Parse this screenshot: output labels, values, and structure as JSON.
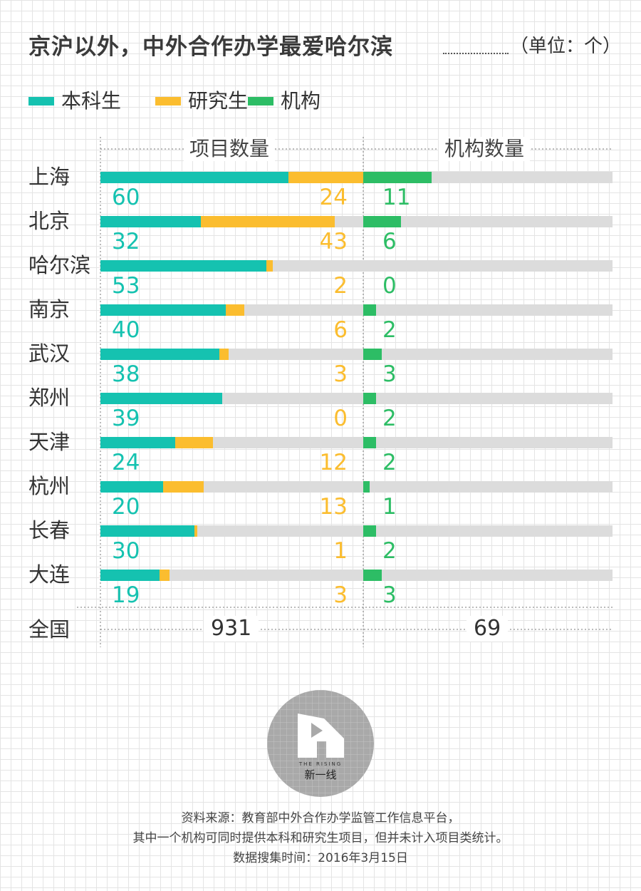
{
  "title": "京沪以外，中外合作办学最爱哈尔滨",
  "unit": "（单位：个）",
  "colors": {
    "undergrad": "#15c2b0",
    "grad": "#fbbd2f",
    "institution": "#2dbd65",
    "track": "#dcdcdc"
  },
  "legend": [
    {
      "label": "本科生",
      "color": "#15c2b0"
    },
    {
      "label": "研究生",
      "color": "#fbbd2f"
    },
    {
      "label": "机构",
      "color": "#2dbd65"
    }
  ],
  "panels": {
    "projects": "项目数量",
    "institutions": "机构数量"
  },
  "chart_data": {
    "type": "bar",
    "categories": [
      "上海",
      "北京",
      "哈尔滨",
      "南京",
      "武汉",
      "郑州",
      "天津",
      "杭州",
      "长春",
      "大连"
    ],
    "series": [
      {
        "name": "本科生",
        "values": [
          60,
          32,
          53,
          40,
          38,
          39,
          24,
          20,
          30,
          19
        ]
      },
      {
        "name": "研究生",
        "values": [
          24,
          43,
          2,
          6,
          3,
          0,
          12,
          13,
          1,
          3
        ]
      },
      {
        "name": "机构",
        "values": [
          11,
          6,
          0,
          2,
          3,
          2,
          2,
          1,
          2,
          3
        ]
      }
    ],
    "project_axis_max": 84,
    "institution_axis_max": 40,
    "total": {
      "label": "全国",
      "projects": "931",
      "institutions": "69"
    }
  },
  "source": {
    "line1": "资料来源：教育部中外合作办学监管工作信息平台，",
    "line2": "其中一个机构可同时提供本科和研究生项目，但并未计入项目类统计。",
    "line3": "数据搜集时间：2016年3月15日"
  },
  "logo": {
    "text": "新一线",
    "subtext": "THE RISING"
  }
}
